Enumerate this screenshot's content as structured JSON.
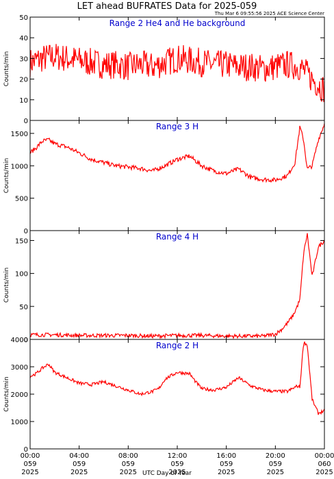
{
  "title": "LET ahead BUFRATES Data for 2025-059",
  "timestamp": "Thu Mar  6 09:55:56 2025 ACE Science Center",
  "xlabel": "UTC Day of Year",
  "x_ticks": [
    {
      "time": "00:00",
      "doy": "059",
      "year": "2025"
    },
    {
      "time": "04:00",
      "doy": "059",
      "year": "2025"
    },
    {
      "time": "08:00",
      "doy": "059",
      "year": "2025"
    },
    {
      "time": "12:00",
      "doy": "059",
      "year": "2025"
    },
    {
      "time": "16:00",
      "doy": "059",
      "year": "2025"
    },
    {
      "time": "20:00",
      "doy": "059",
      "year": "2025"
    },
    {
      "time": "00:00",
      "doy": "060",
      "year": "2025"
    }
  ],
  "colors": {
    "line": "#ff0000",
    "label": "#0000cc",
    "axes": "#000000"
  },
  "chart_data": [
    {
      "type": "line",
      "title": "Range 2 He4 and He background",
      "ylabel": "Counts/min",
      "xlim": [
        0,
        24
      ],
      "ylim": [
        0,
        50
      ],
      "yticks": [
        0,
        10,
        20,
        30,
        40,
        50
      ],
      "x_hours": [
        0,
        1,
        2,
        3,
        4,
        5,
        6,
        7,
        8,
        9,
        10,
        11,
        12,
        13,
        14,
        15,
        16,
        17,
        18,
        19,
        20,
        21,
        22,
        23,
        24
      ],
      "values": [
        28,
        30,
        31,
        30,
        29,
        28,
        27,
        27,
        26,
        27,
        26,
        28,
        30,
        29,
        28,
        27,
        27,
        26,
        26,
        25,
        26,
        27,
        26,
        20,
        15
      ],
      "noise": 7
    },
    {
      "type": "line",
      "title": "Range 3 H",
      "ylabel": "Counts/min",
      "xlim": [
        0,
        24
      ],
      "ylim": [
        0,
        1700
      ],
      "yticks": [
        0,
        500,
        1000,
        1500
      ],
      "x_hours": [
        0,
        0.5,
        1,
        1.5,
        2,
        3,
        4,
        5,
        6,
        7,
        8,
        9,
        10,
        11,
        12,
        13,
        14,
        15,
        16,
        17,
        18,
        19,
        20,
        21,
        21.6,
        22,
        22.3,
        22.6,
        23,
        23.5,
        24
      ],
      "values": [
        1200,
        1280,
        1380,
        1400,
        1340,
        1290,
        1200,
        1100,
        1050,
        1000,
        980,
        960,
        920,
        1000,
        1100,
        1150,
        1000,
        920,
        880,
        950,
        820,
        790,
        780,
        850,
        1050,
        1600,
        1400,
        950,
        1000,
        1400,
        1650
      ],
      "noise": 35
    },
    {
      "type": "line",
      "title": "Range 4 H",
      "ylabel": "Counts/min",
      "xlim": [
        0,
        24
      ],
      "ylim": [
        0,
        165
      ],
      "yticks": [
        0,
        50,
        100,
        150
      ],
      "x_hours": [
        0,
        2,
        4,
        6,
        8,
        10,
        12,
        14,
        16,
        18,
        19,
        20,
        20.5,
        21,
        21.5,
        22,
        22.3,
        22.6,
        23,
        23.5,
        24
      ],
      "values": [
        7,
        7,
        6,
        6,
        6,
        5,
        6,
        6,
        5,
        5,
        5,
        8,
        15,
        25,
        38,
        60,
        130,
        160,
        95,
        140,
        150
      ],
      "noise": 3
    },
    {
      "type": "line",
      "title": "Range 2 H",
      "ylabel": "Counts/min",
      "xlim": [
        0,
        24
      ],
      "ylim": [
        0,
        4000
      ],
      "yticks": [
        0,
        1000,
        2000,
        3000,
        4000
      ],
      "x_hours": [
        0,
        0.5,
        1,
        1.5,
        2,
        3,
        4,
        5,
        6,
        7,
        8,
        9,
        10,
        10.5,
        11,
        12,
        13,
        13.5,
        14,
        15,
        16,
        17,
        18,
        19,
        20,
        21,
        21.8,
        22,
        22.3,
        22.6,
        23,
        23.5,
        24
      ],
      "values": [
        2650,
        2750,
        2950,
        3100,
        2800,
        2600,
        2400,
        2350,
        2450,
        2300,
        2150,
        2000,
        2100,
        2200,
        2550,
        2800,
        2750,
        2450,
        2200,
        2150,
        2250,
        2600,
        2300,
        2150,
        2100,
        2100,
        2300,
        2250,
        3900,
        3800,
        1800,
        1300,
        1400
      ],
      "noise": 60
    }
  ]
}
